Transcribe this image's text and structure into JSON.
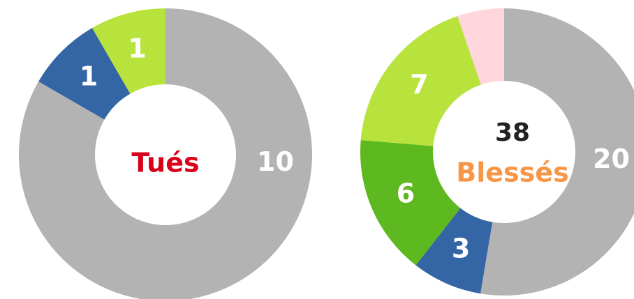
{
  "chart_data": [
    {
      "type": "donut",
      "center_label": "Tués",
      "center_label_color": "#d9001b",
      "series": [
        {
          "name": null,
          "color": "#b3b3b3",
          "values": [
            10
          ]
        },
        {
          "name": null,
          "color": "#3465a4",
          "values": [
            1
          ]
        },
        {
          "name": null,
          "color": "#b8e23c",
          "values": [
            1
          ]
        }
      ]
    },
    {
      "type": "donut",
      "total": 38,
      "center_label": "Blessés",
      "center_label_color": "#f79646",
      "series": [
        {
          "name": null,
          "color": "#b3b3b3",
          "values": [
            20
          ]
        },
        {
          "name": null,
          "color": "#3465a4",
          "values": [
            3
          ]
        },
        {
          "name": null,
          "color": "#5eb820",
          "values": [
            6
          ]
        },
        {
          "name": null,
          "color": "#b8e23c",
          "values": [
            7
          ]
        },
        {
          "name": null,
          "color": "#ffd6dc",
          "values": [
            2
          ],
          "value_labels": [
            null
          ]
        }
      ]
    }
  ]
}
